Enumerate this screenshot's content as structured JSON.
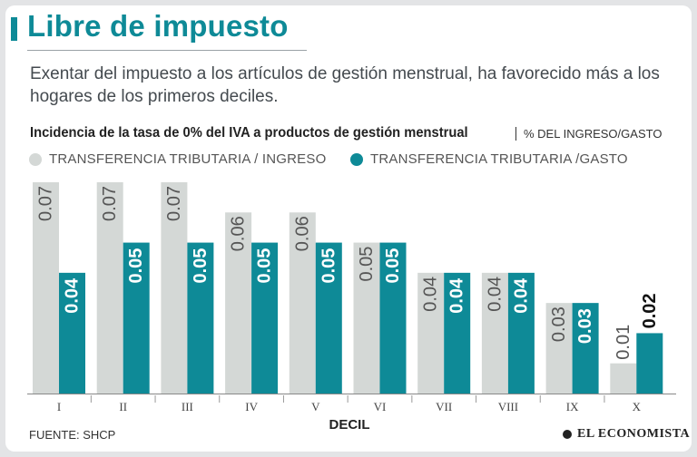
{
  "header": {
    "title": "Libre de impuesto",
    "subtitle": "Exentar del impuesto a los artículos de gestión menstrual, ha favorecido más a los hogares de los primeros deciles."
  },
  "colors": {
    "accent": "#0e8a97",
    "series_ingreso": "#d4d8d6",
    "series_gasto": "#0e8a97"
  },
  "chart_data": {
    "type": "bar",
    "title": "Incidencia de la tasa de 0% del IVA a productos de gestión menstrual",
    "unit": "% DEL INGRESO/GASTO",
    "xlabel": "DECIL",
    "ylabel": "",
    "ylim": [
      0,
      0.07
    ],
    "categories": [
      "I",
      "II",
      "III",
      "IV",
      "V",
      "VI",
      "VII",
      "VIII",
      "IX",
      "X"
    ],
    "series": [
      {
        "name": "TRANSFERENCIA TRIBUTARIA / INGRESO",
        "values": [
          0.07,
          0.07,
          0.07,
          0.06,
          0.06,
          0.05,
          0.04,
          0.04,
          0.03,
          0.01
        ],
        "labels": [
          "0.07",
          "0.07",
          "0.07",
          "0.06",
          "0.06",
          "0.05",
          "0.04",
          "0.04",
          "0.03",
          "0.01"
        ]
      },
      {
        "name": "TRANSFERENCIA TRIBUTARIA /GASTO",
        "values": [
          0.04,
          0.05,
          0.05,
          0.05,
          0.05,
          0.05,
          0.04,
          0.04,
          0.03,
          0.02
        ],
        "labels": [
          "0.04",
          "0.05",
          "0.05",
          "0.05",
          "0.05",
          "0.05",
          "0.04",
          "0.04",
          "0.03",
          "0.02"
        ]
      }
    ]
  },
  "footer": {
    "source": "FUENTE: SHCP",
    "logo": "EL ECONOMISTA"
  }
}
